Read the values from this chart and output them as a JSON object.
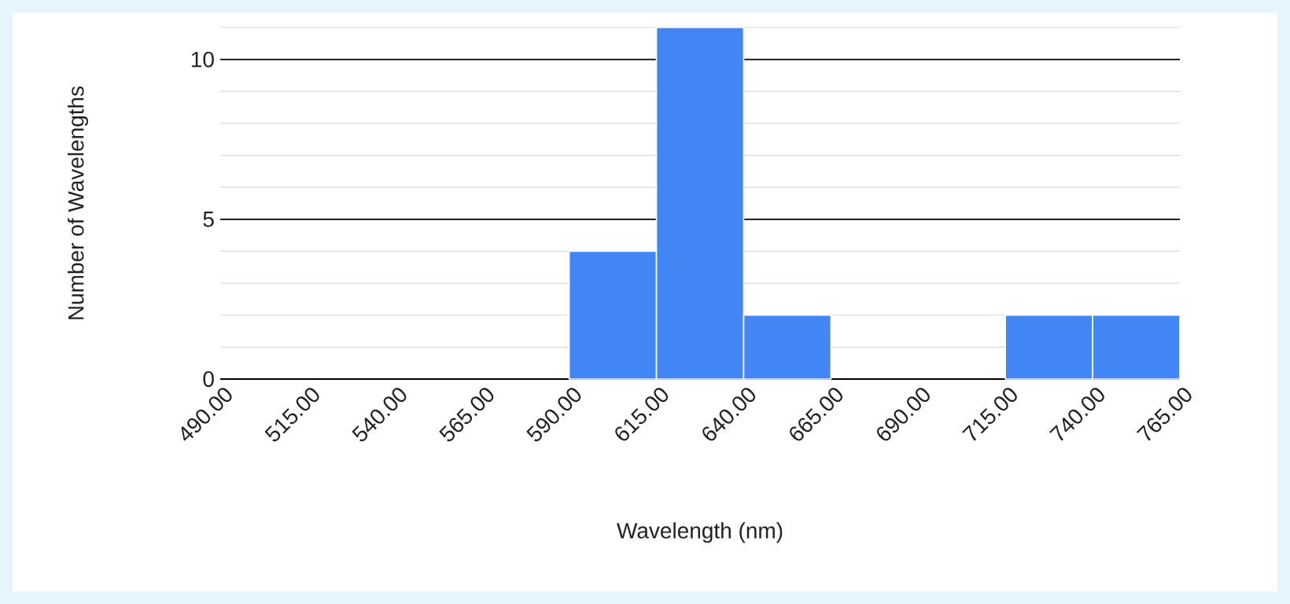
{
  "chart_data": {
    "type": "histogram",
    "xlabel": "Wavelength (nm)",
    "ylabel": "Number of Wavelengths",
    "bins": [
      490,
      515,
      540,
      565,
      590,
      615,
      640,
      665,
      690,
      715,
      740,
      765
    ],
    "values": [
      0,
      0,
      0,
      0,
      4,
      11,
      2,
      0,
      0,
      2,
      2
    ],
    "color": "#4285f4",
    "xlim": [
      490,
      765
    ],
    "ylim": [
      0,
      11
    ],
    "xticks": [
      {
        "value": 490,
        "label": "490.00"
      },
      {
        "value": 515,
        "label": "515.00"
      },
      {
        "value": 540,
        "label": "540.00"
      },
      {
        "value": 565,
        "label": "565.00"
      },
      {
        "value": 590,
        "label": "590.00"
      },
      {
        "value": 615,
        "label": "615.00"
      },
      {
        "value": 640,
        "label": "640.00"
      },
      {
        "value": 665,
        "label": "665.00"
      },
      {
        "value": 690,
        "label": "690.00"
      },
      {
        "value": 715,
        "label": "715.00"
      },
      {
        "value": 740,
        "label": "740.00"
      },
      {
        "value": 765,
        "label": "765.00"
      }
    ],
    "yticks": [
      0,
      {
        "value": 1,
        "label": null
      },
      {
        "value": 2,
        "label": null
      },
      {
        "value": 3,
        "label": null
      },
      {
        "value": 4,
        "label": null
      },
      5,
      {
        "value": 6,
        "label": null
      },
      {
        "value": 7,
        "label": null
      },
      {
        "value": 8,
        "label": null
      },
      {
        "value": 9,
        "label": null
      },
      10,
      {
        "value": 11,
        "label": null
      }
    ],
    "grid": "y"
  }
}
